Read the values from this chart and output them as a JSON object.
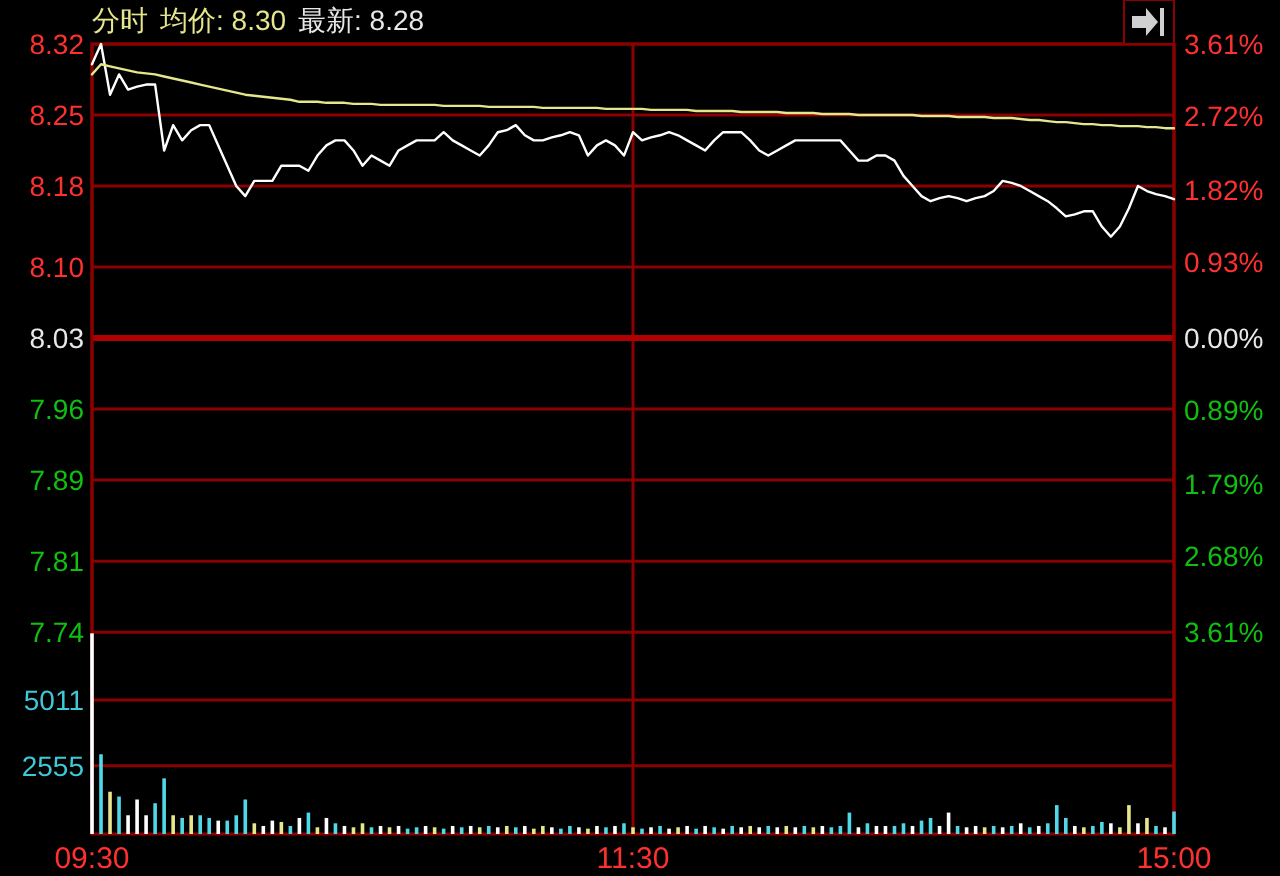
{
  "chart_data": {
    "type": "line",
    "title": "分时",
    "annotations": [
      "均价: 8.30",
      "最新: 8.28"
    ],
    "categories": [
      "09:30",
      null,
      null,
      null,
      null,
      null,
      null,
      null,
      null,
      null,
      null,
      null,
      null,
      null,
      null,
      null,
      null,
      null,
      null,
      null,
      null,
      null,
      null,
      null,
      null,
      null,
      null,
      null,
      null,
      null,
      null,
      null,
      null,
      null,
      null,
      null,
      null,
      null,
      null,
      null,
      null,
      null,
      null,
      null,
      null,
      null,
      null,
      null,
      null,
      null,
      null,
      null,
      null,
      null,
      null,
      null,
      null,
      null,
      null,
      null,
      "11:30",
      null,
      null,
      null,
      null,
      null,
      null,
      null,
      null,
      null,
      null,
      null,
      null,
      null,
      null,
      null,
      null,
      null,
      null,
      null,
      null,
      null,
      null,
      null,
      null,
      null,
      null,
      null,
      null,
      null,
      null,
      null,
      null,
      null,
      null,
      null,
      null,
      null,
      null,
      null,
      null,
      null,
      null,
      null,
      null,
      null,
      null,
      null,
      null,
      null,
      null,
      null,
      null,
      null,
      null,
      null,
      null,
      null,
      null,
      null,
      "15:00"
    ],
    "ylim": [
      7.541,
      8.32
    ],
    "yticks": [
      7.74,
      7.81,
      7.89,
      7.96,
      8.03,
      {
        "value": 8.1,
        "label": "8.10"
      },
      8.18,
      8.25,
      8.32
    ],
    "y2lim": [
      -6.09,
      3.61
    ],
    "y2ticks": [
      {
        "value": -3.61,
        "label": "3.61%"
      },
      {
        "value": -2.68,
        "label": "2.68%"
      },
      {
        "value": -1.79,
        "label": "1.79%"
      },
      {
        "value": -0.89,
        "label": "0.89%"
      },
      {
        "value": 0,
        "label": "0.00%"
      },
      {
        "value": 0.93,
        "label": "0.93%"
      },
      {
        "value": 1.82,
        "label": "1.82%"
      },
      {
        "value": 2.72,
        "label": "2.72%"
      },
      {
        "value": 3.61,
        "label": "3.61%"
      }
    ],
    "y3lim": [
      0,
      29527
    ],
    "y3ticks": [
      2555,
      5011
    ],
    "grid": true,
    "line_style": "solid",
    "ref_lines": [
      {
        "axis": "y",
        "value": 8.03,
        "color": "#b00000"
      }
    ],
    "series": [
      {
        "color": "#ffffff",
        "values": [
          8.3,
          8.32,
          8.27,
          8.29,
          8.275,
          8.278,
          8.28,
          8.28,
          8.215,
          8.24,
          8.225,
          8.235,
          8.24,
          8.24,
          8.22,
          8.2,
          8.18,
          8.17,
          8.185,
          8.185,
          8.185,
          8.2,
          8.2,
          8.2,
          8.195,
          8.21,
          8.22,
          8.225,
          8.225,
          8.215,
          8.2,
          8.21,
          8.205,
          8.2,
          8.215,
          8.22,
          8.225,
          8.225,
          8.225,
          8.233,
          8.225,
          8.22,
          8.215,
          8.21,
          8.22,
          8.233,
          8.235,
          8.24,
          8.23,
          8.225,
          8.225,
          8.228,
          8.23,
          8.233,
          8.23,
          8.21,
          8.22,
          8.225,
          8.22,
          8.21,
          8.233,
          8.225,
          8.228,
          8.23,
          8.233,
          8.23,
          8.225,
          8.22,
          8.215,
          8.225,
          8.233,
          8.233,
          8.233,
          8.225,
          8.215,
          8.21,
          8.215,
          8.22,
          8.225,
          8.225,
          8.225,
          8.225,
          8.225,
          8.225,
          8.215,
          8.205,
          8.205,
          8.21,
          8.21,
          8.205,
          8.19,
          8.18,
          8.17,
          8.165,
          8.168,
          8.17,
          8.168,
          8.165,
          8.168,
          8.17,
          8.175,
          8.185,
          8.183,
          8.18,
          8.175,
          8.17,
          8.165,
          8.158,
          8.15,
          8.152,
          8.155,
          8.155,
          8.14,
          8.13,
          8.14,
          8.158,
          8.18,
          8.175,
          8.172,
          8.17,
          8.167
        ]
      },
      {
        "color": "#e6e68c",
        "values": [
          8.29,
          8.3,
          8.298,
          8.296,
          8.294,
          8.292,
          8.291,
          8.29,
          8.288,
          8.286,
          8.284,
          8.282,
          8.28,
          8.278,
          8.276,
          8.274,
          8.272,
          8.27,
          8.269,
          8.268,
          8.267,
          8.266,
          8.265,
          8.263,
          8.263,
          8.263,
          8.262,
          8.262,
          8.262,
          8.261,
          8.261,
          8.261,
          8.26,
          8.26,
          8.26,
          8.26,
          8.26,
          8.26,
          8.26,
          8.259,
          8.259,
          8.259,
          8.259,
          8.259,
          8.258,
          8.258,
          8.258,
          8.258,
          8.258,
          8.258,
          8.257,
          8.257,
          8.257,
          8.257,
          8.257,
          8.257,
          8.257,
          8.256,
          8.256,
          8.256,
          8.256,
          8.256,
          8.255,
          8.255,
          8.255,
          8.255,
          8.255,
          8.254,
          8.254,
          8.254,
          8.254,
          8.254,
          8.253,
          8.253,
          8.253,
          8.253,
          8.253,
          8.252,
          8.252,
          8.252,
          8.252,
          8.251,
          8.251,
          8.251,
          8.251,
          8.25,
          8.25,
          8.25,
          8.25,
          8.25,
          8.25,
          8.25,
          8.249,
          8.249,
          8.249,
          8.249,
          8.248,
          8.248,
          8.248,
          8.248,
          8.247,
          8.247,
          8.247,
          8.246,
          8.245,
          8.245,
          8.244,
          8.243,
          8.243,
          8.242,
          8.241,
          8.241,
          8.24,
          8.24,
          8.239,
          8.239,
          8.239,
          8.238,
          8.238,
          8.237,
          8.237
        ]
      },
      {
        "type": "bar",
        "axis": "y3",
        "values": [
          7500,
          2980,
          1580,
          1400,
          700,
          1290,
          700,
          1150,
          2080,
          700,
          600,
          700,
          700,
          600,
          500,
          500,
          700,
          1290,
          400,
          300,
          500,
          450,
          300,
          600,
          800,
          250,
          600,
          400,
          300,
          250,
          400,
          250,
          300,
          250,
          300,
          200,
          250,
          300,
          250,
          200,
          300,
          250,
          300,
          250,
          300,
          250,
          300,
          250,
          300,
          200,
          300,
          250,
          200,
          300,
          250,
          200,
          300,
          250,
          300,
          400,
          250,
          200,
          250,
          300,
          200,
          250,
          300,
          200,
          300,
          250,
          200,
          300,
          250,
          300,
          250,
          300,
          250,
          300,
          250,
          300,
          250,
          300,
          250,
          300,
          800,
          250,
          400,
          300,
          300,
          300,
          400,
          300,
          500,
          600,
          300,
          800,
          300,
          250,
          300,
          250,
          300,
          250,
          300,
          400,
          250,
          300,
          400,
          1080,
          600,
          300,
          250,
          300,
          450,
          400,
          250,
          1080,
          400,
          600,
          300,
          250,
          840
        ],
        "colors": [
          "#ffffff",
          "#4fd8e8",
          "#e6e68c",
          "#4fd8e8",
          "#ffffff",
          "#ffffff",
          "#ffffff",
          "#4fd8e8",
          "#4fd8e8",
          "#e6e68c",
          "#4fd8e8",
          "#e6e68c",
          "#4fd8e8",
          "#4fd8e8",
          "#ffffff",
          "#4fd8e8",
          "#4fd8e8",
          "#4fd8e8",
          "#e6e68c",
          "#ffffff",
          "#ffffff",
          "#e6e68c",
          "#4fd8e8",
          "#ffffff",
          "#4fd8e8",
          "#e6e68c",
          "#ffffff",
          "#4fd8e8",
          "#ffffff",
          "#e6e68c",
          "#e6e68c",
          "#4fd8e8",
          "#ffffff",
          "#e6e68c",
          "#ffffff",
          "#4fd8e8",
          "#4fd8e8",
          "#ffffff",
          "#e6e68c",
          "#4fd8e8",
          "#ffffff",
          "#4fd8e8",
          "#ffffff",
          "#e6e68c",
          "#4fd8e8",
          "#ffffff",
          "#e6e68c",
          "#4fd8e8",
          "#ffffff",
          "#e6e68c",
          "#e6e68c",
          "#ffffff",
          "#4fd8e8",
          "#4fd8e8",
          "#ffffff",
          "#e6e68c",
          "#ffffff",
          "#4fd8e8",
          "#ffffff",
          "#4fd8e8",
          "#e6e68c",
          "#4fd8e8",
          "#ffffff",
          "#4fd8e8",
          "#ffffff",
          "#e6e68c",
          "#ffffff",
          "#4fd8e8",
          "#ffffff",
          "#4fd8e8",
          "#ffffff",
          "#4fd8e8",
          "#ffffff",
          "#e6e68c",
          "#ffffff",
          "#4fd8e8",
          "#ffffff",
          "#e6e68c",
          "#ffffff",
          "#4fd8e8",
          "#e6e68c",
          "#ffffff",
          "#4fd8e8",
          "#4fd8e8",
          "#4fd8e8",
          "#ffffff",
          "#4fd8e8",
          "#ffffff",
          "#ffffff",
          "#4fd8e8",
          "#4fd8e8",
          "#ffffff",
          "#4fd8e8",
          "#4fd8e8",
          "#ffffff",
          "#ffffff",
          "#4fd8e8",
          "#ffffff",
          "#ffffff",
          "#e6e68c",
          "#4fd8e8",
          "#ffffff",
          "#4fd8e8",
          "#ffffff",
          "#4fd8e8",
          "#ffffff",
          "#4fd8e8",
          "#4fd8e8",
          "#4fd8e8",
          "#ffffff",
          "#e6e68c",
          "#4fd8e8",
          "#4fd8e8",
          "#ffffff",
          "#e6e68c",
          "#e6e68c",
          "#ffffff",
          "#e6e68c",
          "#4fd8e8",
          "#ffffff",
          "#4fd8e8"
        ]
      }
    ]
  }
}
